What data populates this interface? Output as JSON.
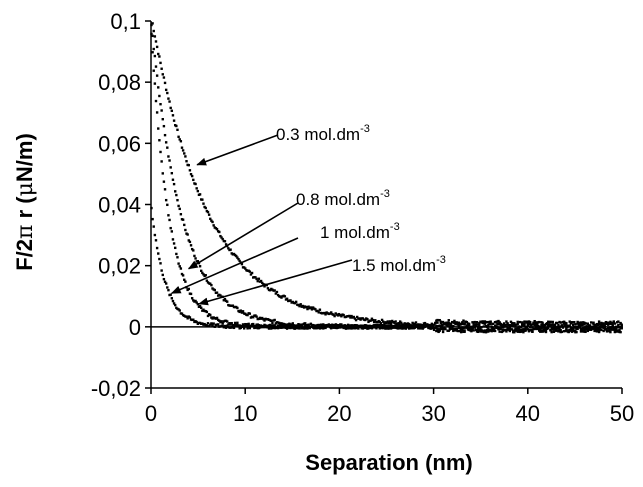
{
  "chart_data": {
    "type": "scatter",
    "title": "",
    "xlabel": "Separation (nm)",
    "ylabel_parts": {
      "main": "F/2",
      "pi": "π",
      "mid": " r (",
      "mu": "μ",
      "end": "N/m)"
    },
    "xlim": [
      0,
      50
    ],
    "ylim": [
      -0.02,
      0.1
    ],
    "x_ticks": [
      0,
      10,
      20,
      30,
      40,
      50
    ],
    "x_tick_labels": [
      "0",
      "10",
      "20",
      "30",
      "40",
      "50"
    ],
    "y_ticks": [
      -0.02,
      0,
      0.02,
      0.04,
      0.06,
      0.08,
      0.1
    ],
    "y_tick_labels": [
      "-0,02",
      "0",
      "0,02",
      "0,04",
      "0,06",
      "0,08",
      "0,1"
    ],
    "grid": false,
    "legend": "none",
    "marker_color": "#000000",
    "series": [
      {
        "label_text": "0.3 mol.dm",
        "label_exp": "-3",
        "decay_length": 6.0,
        "amplitude": 0.102,
        "x_end": 50
      },
      {
        "label_text": "0.8 mol.dm",
        "label_exp": "-3",
        "decay_length": 3.2,
        "amplitude": 0.1,
        "x_end": 50
      },
      {
        "label_text": "1 mol.dm",
        "label_exp": "-3",
        "decay_length": 1.9,
        "amplitude": 0.098,
        "x_end": 50
      },
      {
        "label_text": "1.5 mol.dm",
        "label_exp": "-3",
        "decay_length": 1.5,
        "amplitude": 0.04,
        "x_end": 50
      }
    ],
    "annotations": [
      {
        "text": "0.3 mol.dm",
        "exp": "-3",
        "point_to": [
          4.9,
          0.053
        ]
      },
      {
        "text": "0.8 mol.dm",
        "exp": "-3",
        "point_to": [
          4.0,
          0.019
        ]
      },
      {
        "text": "1 mol.dm",
        "exp": "-3",
        "point_to": [
          2.2,
          0.011
        ]
      },
      {
        "text": "1.5 mol.dm",
        "exp": "-3",
        "point_to": [
          5.1,
          0.0075
        ]
      }
    ]
  }
}
